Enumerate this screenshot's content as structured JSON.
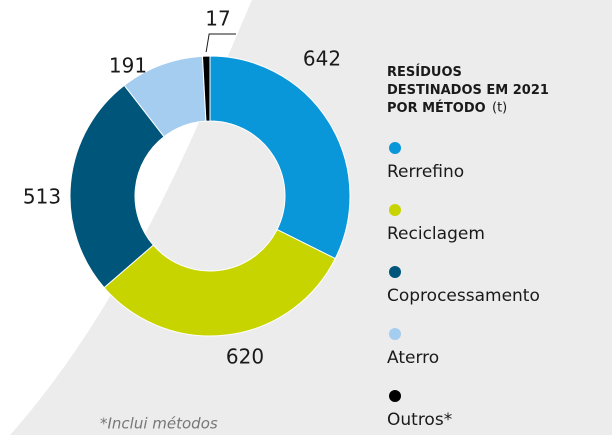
{
  "chart_data": {
    "type": "pie",
    "donut": true,
    "title": "RESÍDUOS DESTINADOS EM 2021 POR MÉTODO",
    "unit": "(t)",
    "categories": [
      "Rerrefino",
      "Reciclagem",
      "Coprocessamento",
      "Aterro",
      "Outros*"
    ],
    "values": [
      642,
      620,
      513,
      191,
      17
    ],
    "colors": [
      "#0a97d9",
      "#c8d400",
      "#00567a",
      "#a5cdf0",
      "#000000"
    ],
    "footnote": "*Inclui métodos"
  }
}
